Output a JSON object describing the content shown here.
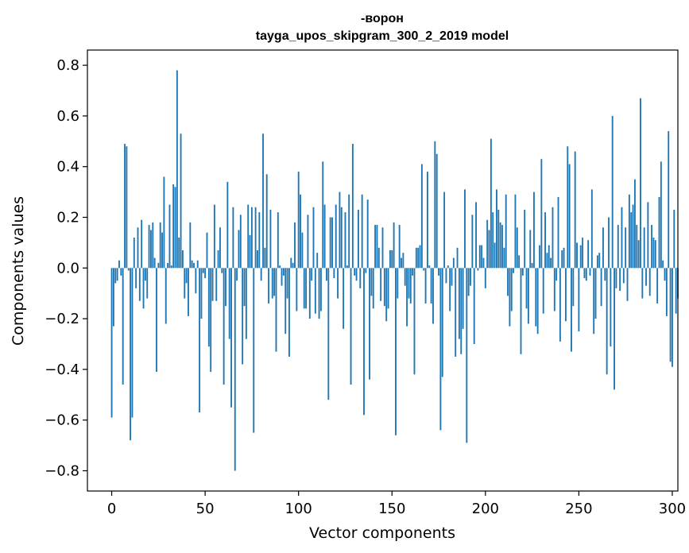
{
  "chart_data": {
    "type": "bar",
    "title_line1": "-ворон",
    "title_line2": "tayga_upos_skipgram_300_2_2019 model",
    "xlabel": "Vector components",
    "ylabel": "Components values",
    "xlim": [
      -13,
      303
    ],
    "ylim": [
      -0.88,
      0.86
    ],
    "xticks": [
      0,
      50,
      100,
      150,
      200,
      250,
      300
    ],
    "xtick_labels": [
      "0",
      "50",
      "100",
      "150",
      "200",
      "250",
      "300"
    ],
    "yticks": [
      -0.8,
      -0.6,
      -0.4,
      -0.2,
      0.0,
      0.2,
      0.4,
      0.6,
      0.8
    ],
    "ytick_labels": [
      "−0.8",
      "−0.6",
      "−0.4",
      "−0.2",
      "0.0",
      "0.2",
      "0.4",
      "0.6",
      "0.8"
    ],
    "bar_color": "#1f77b4",
    "values": [
      -0.59,
      -0.23,
      -0.06,
      -0.05,
      0.03,
      -0.03,
      -0.46,
      0.49,
      0.48,
      -0.01,
      -0.68,
      -0.59,
      0.12,
      -0.08,
      0.16,
      -0.13,
      0.19,
      -0.16,
      -0.05,
      -0.12,
      0.17,
      0.15,
      0.18,
      0.04,
      -0.41,
      0.02,
      0.18,
      0.14,
      0.36,
      -0.22,
      0.02,
      0.25,
      0.01,
      0.33,
      0.32,
      0.78,
      0.12,
      0.53,
      0.07,
      -0.12,
      -0.06,
      -0.19,
      0.18,
      0.03,
      0.02,
      -0.1,
      0.03,
      -0.57,
      -0.2,
      -0.02,
      -0.04,
      0.14,
      -0.31,
      -0.41,
      -0.13,
      0.25,
      -0.13,
      0.07,
      0.16,
      -0.02,
      -0.46,
      -0.15,
      0.34,
      -0.28,
      -0.55,
      0.24,
      -0.8,
      -0.05,
      0.15,
      0.21,
      -0.38,
      -0.15,
      -0.28,
      0.25,
      0.13,
      0.24,
      -0.65,
      0.24,
      0.07,
      0.22,
      -0.05,
      0.53,
      0.08,
      0.37,
      -0.14,
      0.23,
      -0.12,
      -0.11,
      -0.33,
      0.22,
      0.01,
      -0.07,
      -0.03,
      -0.26,
      -0.12,
      -0.35,
      0.04,
      0.02,
      0.18,
      -0.17,
      0.38,
      0.29,
      0.14,
      -0.16,
      -0.16,
      0.21,
      -0.2,
      -0.05,
      0.24,
      -0.18,
      0.06,
      -0.2,
      -0.17,
      0.42,
      0.25,
      -0.05,
      -0.52,
      0.2,
      0.2,
      -0.04,
      0.25,
      -0.12,
      0.3,
      0.24,
      -0.24,
      0.22,
      0.01,
      0.29,
      -0.46,
      0.49,
      -0.03,
      -0.05,
      0.23,
      -0.08,
      0.29,
      -0.58,
      -0.02,
      0.27,
      -0.44,
      -0.11,
      -0.16,
      0.17,
      0.17,
      0.08,
      -0.13,
      0.16,
      -0.15,
      -0.21,
      -0.16,
      0.07,
      0.07,
      0.18,
      -0.66,
      -0.12,
      0.17,
      0.04,
      0.06,
      -0.07,
      -0.23,
      -0.12,
      -0.14,
      -0.03,
      -0.42,
      0.08,
      0.08,
      0.09,
      0.41,
      -0.01,
      -0.14,
      0.38,
      0.01,
      -0.14,
      -0.22,
      0.5,
      0.45,
      -0.03,
      -0.64,
      -0.43,
      0.3,
      -0.06,
      0.01,
      -0.17,
      -0.07,
      0.04,
      -0.35,
      0.08,
      -0.28,
      -0.34,
      -0.24,
      0.31,
      -0.69,
      -0.11,
      -0.07,
      0.21,
      -0.3,
      0.26,
      -0.01,
      0.09,
      0.09,
      0.04,
      -0.08,
      0.19,
      0.15,
      0.51,
      0.22,
      0.1,
      0.31,
      0.23,
      0.18,
      0.17,
      0.08,
      0.29,
      -0.11,
      -0.23,
      -0.17,
      -0.02,
      0.29,
      0.16,
      0.05,
      -0.34,
      -0.03,
      0.23,
      -0.16,
      -0.22,
      0.15,
      0.02,
      0.3,
      -0.23,
      -0.26,
      0.09,
      0.43,
      -0.18,
      0.22,
      0.06,
      0.09,
      0.04,
      0.24,
      -0.17,
      -0.05,
      0.28,
      -0.29,
      0.07,
      0.08,
      -0.21,
      0.48,
      0.41,
      -0.33,
      -0.15,
      0.46,
      0.1,
      -0.25,
      0.09,
      0.12,
      -0.04,
      -0.05,
      0.11,
      -0.03,
      0.31,
      -0.26,
      -0.2,
      0.05,
      0.06,
      -0.15,
      0.16,
      -0.05,
      -0.42,
      0.2,
      -0.31,
      0.6,
      -0.48,
      -0.08,
      0.17,
      -0.09,
      0.24,
      -0.06,
      0.16,
      -0.13,
      0.29,
      0.22,
      0.25,
      0.35,
      0.17,
      0.11,
      0.67,
      -0.12,
      0.16,
      -0.07,
      0.26,
      -0.11,
      0.17,
      0.12,
      0.11,
      -0.14,
      0.28,
      0.42,
      0.03,
      -0.05,
      -0.19,
      0.54,
      -0.37,
      -0.39,
      0.23,
      -0.18,
      -0.12
    ]
  }
}
